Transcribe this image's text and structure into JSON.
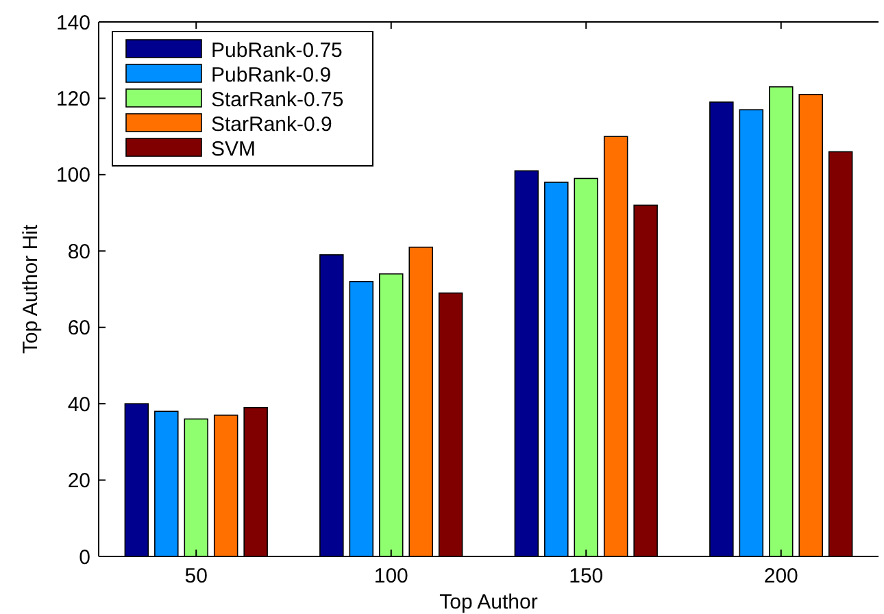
{
  "chart_data": {
    "type": "bar",
    "xlabel": "Top Author",
    "ylabel": "Top Author Hit",
    "categories": [
      "50",
      "100",
      "150",
      "200"
    ],
    "series": [
      {
        "name": "PubRank-0.75",
        "color": "#00008f",
        "values": [
          40,
          79,
          101,
          119
        ]
      },
      {
        "name": "PubRank-0.9",
        "color": "#008fff",
        "values": [
          38,
          72,
          98,
          117
        ]
      },
      {
        "name": "StarRank-0.75",
        "color": "#8fff70",
        "values": [
          36,
          74,
          99,
          123
        ]
      },
      {
        "name": "StarRank-0.9",
        "color": "#ff7000",
        "values": [
          37,
          81,
          110,
          121
        ]
      },
      {
        "name": "SVM",
        "color": "#800000",
        "values": [
          39,
          69,
          92,
          106
        ]
      }
    ],
    "ylim": [
      0,
      140
    ],
    "yticks": [
      0,
      20,
      40,
      60,
      80,
      100,
      120,
      140
    ],
    "grid": false,
    "legend": "top left"
  }
}
